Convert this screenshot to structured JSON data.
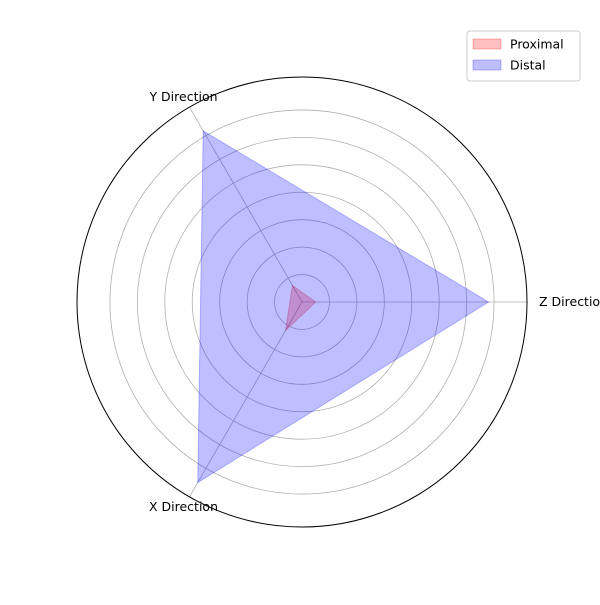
{
  "chart_data": {
    "type": "radar",
    "title": "",
    "axes": [
      "Z Direction",
      "Y Direction",
      "X Direction"
    ],
    "rlim": [
      0,
      8.2
    ],
    "rgrid_values": [
      1,
      2,
      3,
      4,
      5,
      6,
      7
    ],
    "rgrid_labels_shown": false,
    "grid": true,
    "legend_position": "top-right",
    "series": [
      {
        "name": "Proximal",
        "values": [
          0.5,
          0.7,
          1.2
        ],
        "color": "#ff0000",
        "opacity": 0.25
      },
      {
        "name": "Distal",
        "values": [
          6.8,
          7.2,
          7.6
        ],
        "color": "#0000ff",
        "opacity": 0.25
      }
    ]
  }
}
